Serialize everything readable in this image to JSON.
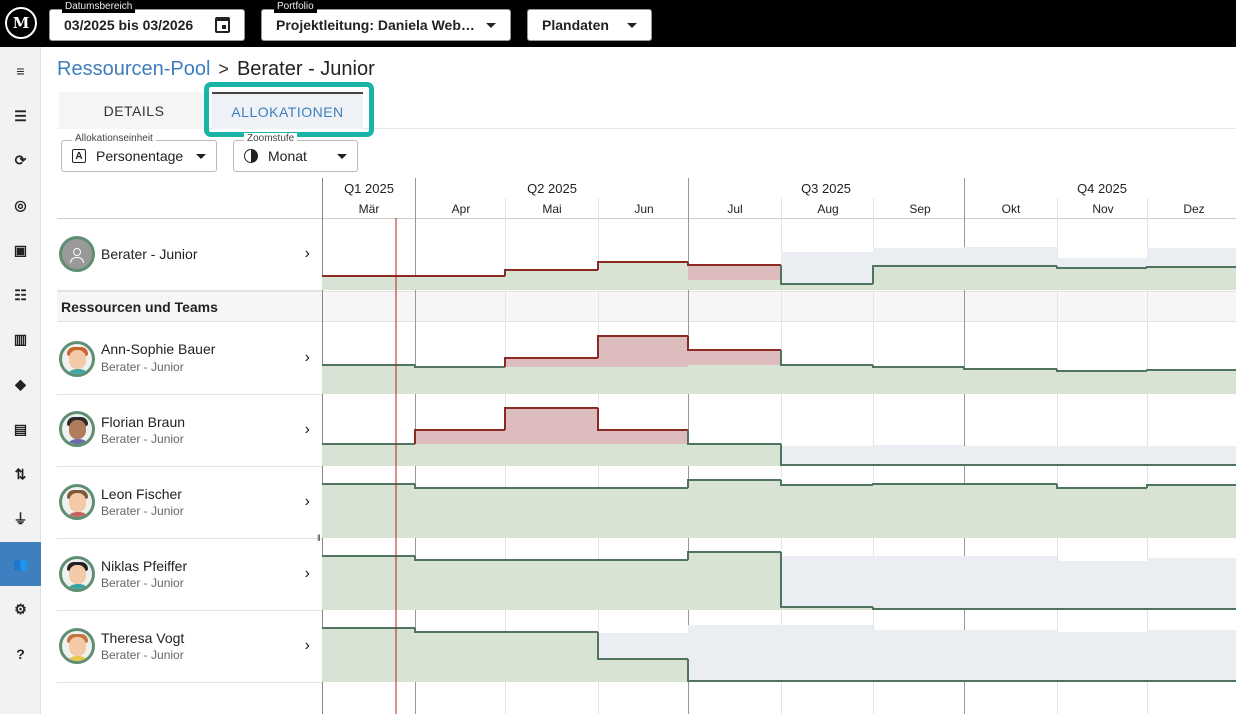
{
  "topbar": {
    "logo_text": "M",
    "date_range": {
      "label": "Datumsbereich",
      "value": "03/2025 bis 03/2026"
    },
    "portfolio": {
      "label": "Portfolio",
      "value": "Projektleitung: Daniela Web…"
    },
    "dataset": {
      "value": "Plandaten"
    }
  },
  "sidebar": {
    "items": [
      {
        "icon": "menu-collapse-icon",
        "glyph": "≡"
      },
      {
        "icon": "person-list-icon",
        "glyph": "☰"
      },
      {
        "icon": "refresh-icon",
        "glyph": "⟳"
      },
      {
        "icon": "target-icon",
        "glyph": "◎"
      },
      {
        "icon": "badge-icon",
        "glyph": "▣"
      },
      {
        "icon": "list-icon",
        "glyph": "☷"
      },
      {
        "icon": "columns-icon",
        "glyph": "▥"
      },
      {
        "icon": "directions-icon",
        "glyph": "◆"
      },
      {
        "icon": "document-icon",
        "glyph": "▤"
      },
      {
        "icon": "sort-icon",
        "glyph": "⇅"
      },
      {
        "icon": "plug-icon",
        "glyph": "⏚"
      },
      {
        "icon": "people-icon",
        "glyph": "👥",
        "active": true
      },
      {
        "icon": "settings-icon",
        "glyph": "⚙"
      },
      {
        "icon": "help-icon",
        "glyph": "?"
      }
    ]
  },
  "breadcrumb": {
    "parent": "Ressourcen-Pool",
    "separator": ">",
    "current": "Berater - Junior"
  },
  "tabs": [
    {
      "label": "DETAILS",
      "active": false
    },
    {
      "label": "ALLOKATIONEN",
      "active": true
    }
  ],
  "filters": {
    "unit": {
      "label": "Allokationseinheit",
      "value": "Personentage",
      "icon": "text-box-icon",
      "glyph": "A"
    },
    "zoom": {
      "label": "Zoomstufe",
      "value": "Monat",
      "icon": "contrast-icon"
    }
  },
  "timeline": {
    "quarters": [
      "Q1 2025",
      "Q2 2025",
      "Q3 2025",
      "Q4 2025"
    ],
    "months": [
      "Mär",
      "Apr",
      "Mai",
      "Jun",
      "Jul",
      "Aug",
      "Sep",
      "Okt",
      "Nov",
      "Dez"
    ]
  },
  "colors": {
    "overallocation_fill": "#dcbcbc",
    "overallocation_line": "#8b2a22",
    "allocation_fill": "#d9e3d4",
    "capacity_line": "#4f7560",
    "free_capacity": "#eaedf1",
    "today_line": "#b22222",
    "accent": "#3f7ebd",
    "highlight": "#19b4a6"
  },
  "pool": {
    "name": "Berater - Junior"
  },
  "section_title": "Ressourcen und Teams",
  "resources": [
    {
      "name": "Ann-Sophie Bauer",
      "role": "Berater - Junior",
      "avatar": "avatar-female-red-hair"
    },
    {
      "name": "Florian Braun",
      "role": "Berater - Junior",
      "avatar": "avatar-male-beard"
    },
    {
      "name": "Leon Fischer",
      "role": "Berater - Junior",
      "avatar": "avatar-male-glasses"
    },
    {
      "name": "Niklas Pfeiffer",
      "role": "Berater - Junior",
      "avatar": "avatar-male-dark-hair"
    },
    {
      "name": "Theresa Vogt",
      "role": "Berater - Junior",
      "avatar": "avatar-female-blonde"
    }
  ]
}
